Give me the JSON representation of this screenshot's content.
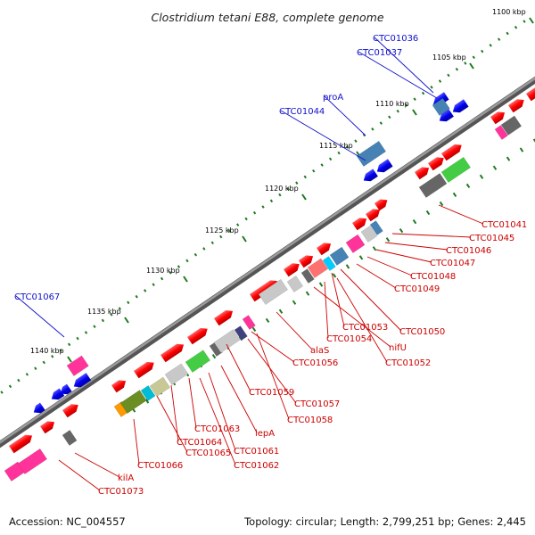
{
  "title": "Clostridium tetani E88, complete genome",
  "ticks": [
    {
      "label": "1100 kbp"
    },
    {
      "label": "1105 kbp"
    },
    {
      "label": "1110 kbp"
    },
    {
      "label": "1115 kbp"
    },
    {
      "label": "1120 kbp"
    },
    {
      "label": "1125 kbp"
    },
    {
      "label": "1130 kbp"
    },
    {
      "label": "1135 kbp"
    },
    {
      "label": "1140 kbp"
    }
  ],
  "gene_labels": [
    {
      "text": "CTC01036",
      "color": "#1010cc"
    },
    {
      "text": "CTC01037",
      "color": "#1010cc"
    },
    {
      "text": "proA",
      "color": "#1010cc"
    },
    {
      "text": "CTC01044",
      "color": "#1010cc"
    },
    {
      "text": "CTC01067",
      "color": "#1010cc"
    },
    {
      "text": "CTC01041",
      "color": "#cc0000"
    },
    {
      "text": "CTC01045",
      "color": "#cc0000"
    },
    {
      "text": "CTC01046",
      "color": "#cc0000"
    },
    {
      "text": "CTC01047",
      "color": "#cc0000"
    },
    {
      "text": "CTC01048",
      "color": "#cc0000"
    },
    {
      "text": "CTC01049",
      "color": "#cc0000"
    },
    {
      "text": "CTC01050",
      "color": "#cc0000"
    },
    {
      "text": "CTC01053",
      "color": "#cc0000"
    },
    {
      "text": "CTC01054",
      "color": "#cc0000"
    },
    {
      "text": "nifU",
      "color": "#cc0000"
    },
    {
      "text": "CTC01052",
      "color": "#cc0000"
    },
    {
      "text": "alaS",
      "color": "#cc0000"
    },
    {
      "text": "CTC01056",
      "color": "#cc0000"
    },
    {
      "text": "CTC01059",
      "color": "#cc0000"
    },
    {
      "text": "CTC01057",
      "color": "#cc0000"
    },
    {
      "text": "CTC01058",
      "color": "#cc0000"
    },
    {
      "text": "CTC01063",
      "color": "#cc0000"
    },
    {
      "text": "lepA",
      "color": "#cc0000"
    },
    {
      "text": "CTC01064",
      "color": "#cc0000"
    },
    {
      "text": "CTC01065",
      "color": "#cc0000"
    },
    {
      "text": "CTC01061",
      "color": "#cc0000"
    },
    {
      "text": "CTC01062",
      "color": "#cc0000"
    },
    {
      "text": "CTC01066",
      "color": "#cc0000"
    },
    {
      "text": "kilA",
      "color": "#cc0000"
    },
    {
      "text": "CTC01073",
      "color": "#cc0000"
    }
  ],
  "colors": {
    "backbone": "#6e6e6e",
    "forward_gene": "#ff1a1a",
    "reverse_gene": "#0000ee",
    "tick_mark": "#1f7a1f",
    "label_line_red": "#cc0000",
    "label_line_blue": "#1010cc"
  },
  "footer": {
    "accession": "Accession: NC_004557",
    "summary": "Topology: circular; Length: 2,799,251 bp; Genes: 2,445"
  }
}
